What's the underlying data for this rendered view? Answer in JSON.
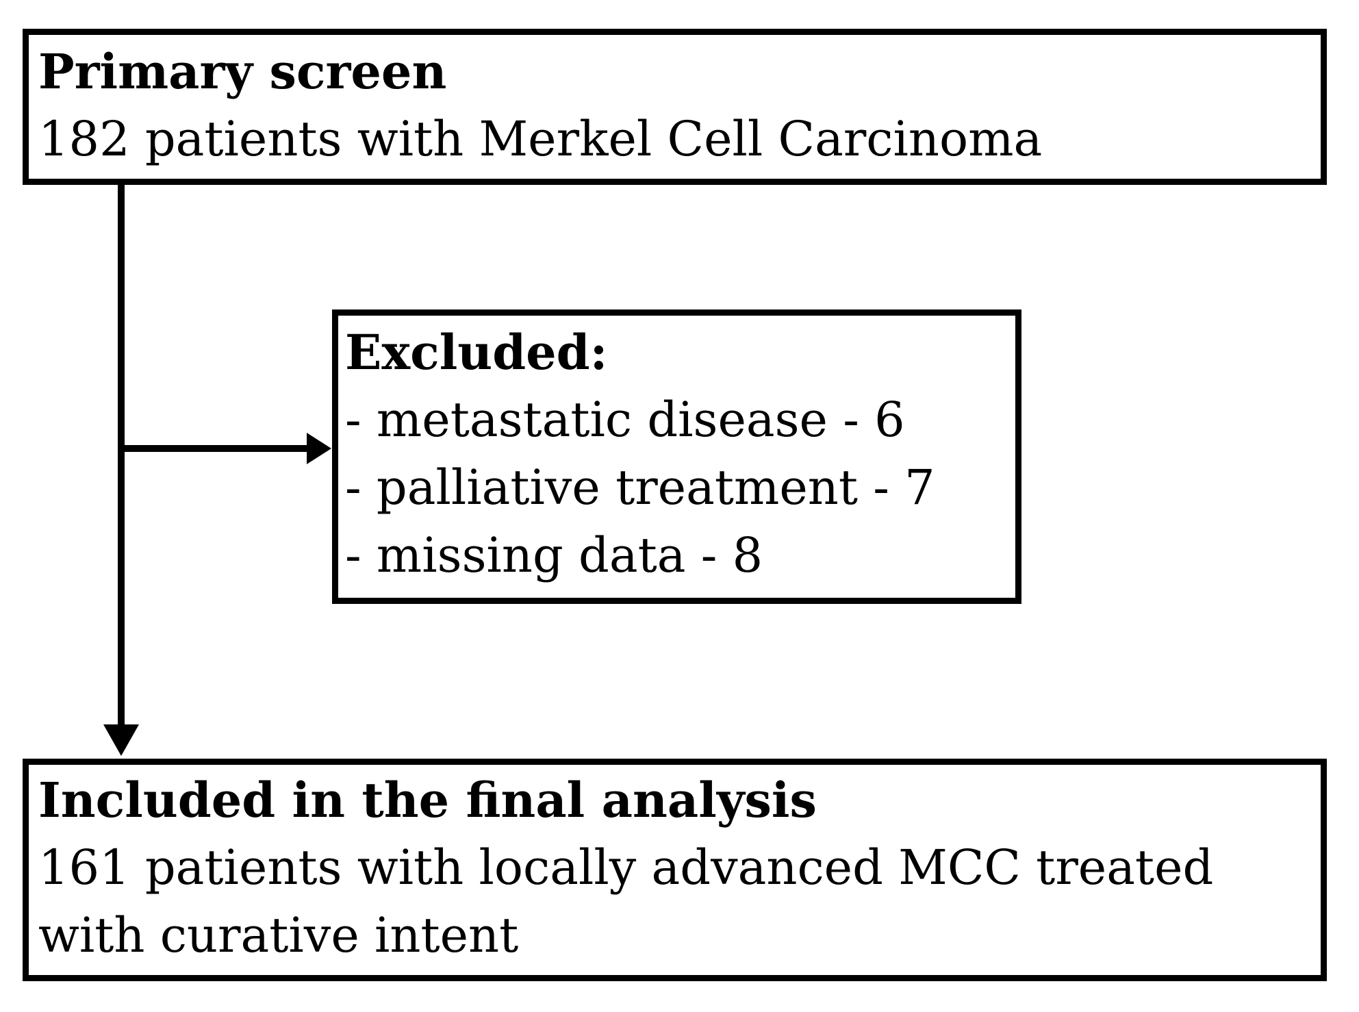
{
  "flowchart": {
    "colors": {
      "stroke": "#000000",
      "background": "#ffffff",
      "text": "#000000"
    },
    "primary_box": {
      "heading": "Primary screen",
      "lines": [
        "182 patients with Merkel Cell Carcinoma"
      ]
    },
    "excluded_box": {
      "heading": "Excluded:",
      "items": [
        "- metastatic disease - 6",
        "- palliative treatment - 7",
        "- missing data - 8"
      ]
    },
    "included_box": {
      "heading": "Included in the final analysis",
      "lines": [
        "161 patients with locally advanced MCC treated",
        "with curative intent"
      ]
    }
  }
}
